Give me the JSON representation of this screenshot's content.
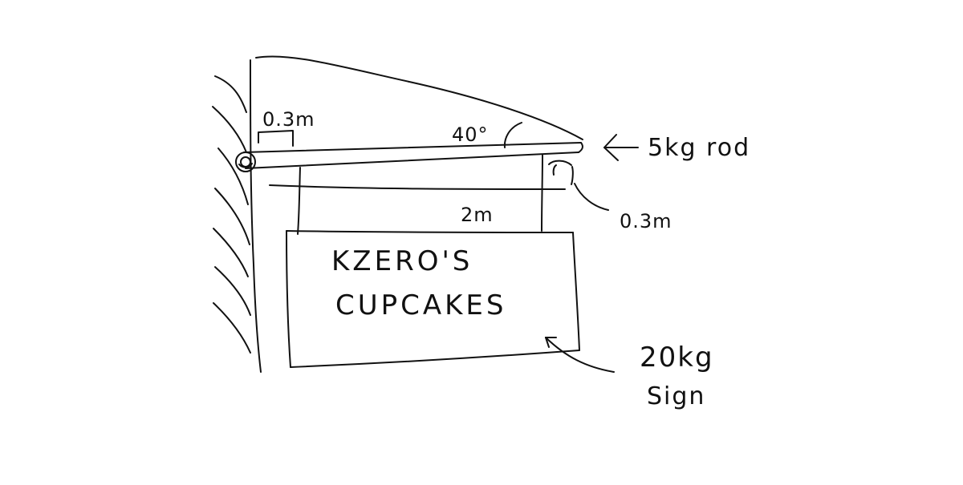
{
  "diagram": {
    "top_length": "0.3m",
    "angle": "40°",
    "rod_label": "5kg rod",
    "right_length": "0.3m",
    "span_length": "2m",
    "sign_line_1": "KZERO'S",
    "sign_line_2": "CUPCAKES",
    "sign_mass": "20kg",
    "sign_label": "Sign"
  },
  "colors": {
    "ink": "#111111",
    "paper": "#ffffff"
  }
}
